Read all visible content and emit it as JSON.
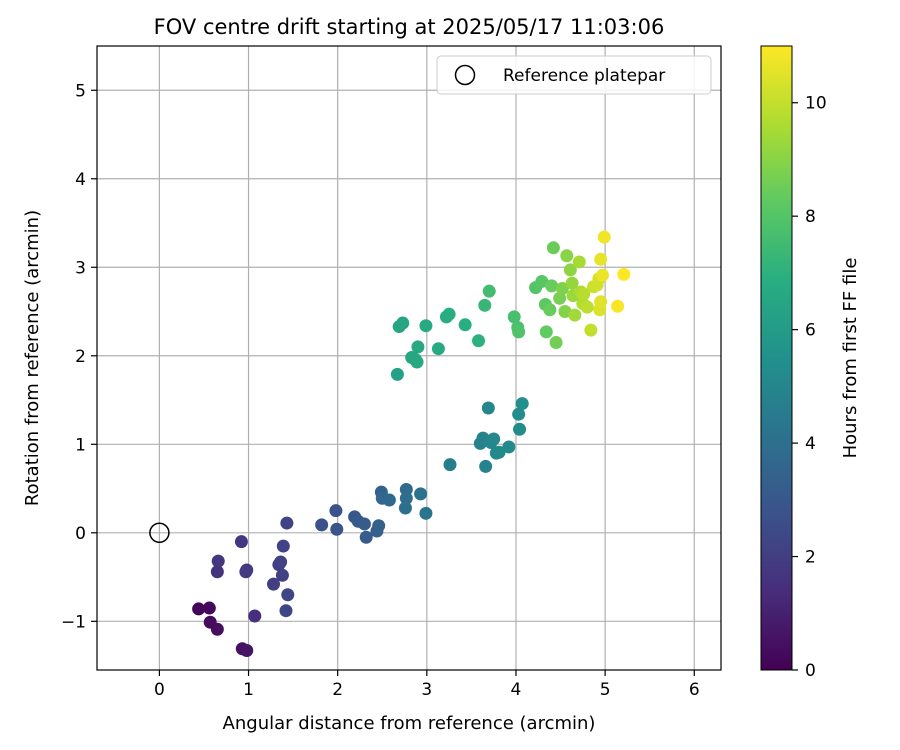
{
  "chart_data": {
    "type": "scatter",
    "title": "FOV centre drift starting at 2025/05/17 11:03:06",
    "xlabel": "Angular distance from reference (arcmin)",
    "ylabel": "Rotation from reference (arcmin)",
    "xlim": [
      -0.7,
      6.3
    ],
    "ylim": [
      -1.55,
      5.5
    ],
    "xticks": [
      0,
      1,
      2,
      3,
      4,
      5,
      6
    ],
    "yticks": [
      -1,
      0,
      1,
      2,
      3,
      4,
      5
    ],
    "xtick_labels": [
      "0",
      "1",
      "2",
      "3",
      "4",
      "5",
      "6"
    ],
    "ytick_labels": [
      "−1",
      "0",
      "1",
      "2",
      "3",
      "4",
      "5"
    ],
    "grid": true,
    "legend": {
      "placement": "top-right",
      "entries": [
        "Reference platepar"
      ]
    },
    "reference_point": {
      "x": 0,
      "y": 0,
      "label": "Reference platepar"
    },
    "colorbar": {
      "label": "Hours from first FF file",
      "range": [
        0,
        11
      ],
      "ticks": [
        0,
        2,
        4,
        6,
        8,
        10
      ],
      "tick_labels": [
        "0",
        "2",
        "4",
        "6",
        "8",
        "10"
      ],
      "colormap": "viridis"
    },
    "points": [
      {
        "x": 0.44,
        "y": -0.86,
        "c": 0.1
      },
      {
        "x": 0.56,
        "y": -0.85,
        "c": 0.2
      },
      {
        "x": 0.57,
        "y": -1.01,
        "c": 0.3
      },
      {
        "x": 0.65,
        "y": -1.09,
        "c": 0.4
      },
      {
        "x": 0.93,
        "y": -1.31,
        "c": 0.5
      },
      {
        "x": 0.98,
        "y": -1.33,
        "c": 0.6
      },
      {
        "x": 1.07,
        "y": -0.94,
        "c": 1.5
      },
      {
        "x": 0.65,
        "y": -0.44,
        "c": 1.6
      },
      {
        "x": 0.66,
        "y": -0.32,
        "c": 1.7
      },
      {
        "x": 0.92,
        "y": -0.1,
        "c": 1.8
      },
      {
        "x": 0.97,
        "y": -0.44,
        "c": 1.9
      },
      {
        "x": 0.98,
        "y": -0.42,
        "c": 1.9
      },
      {
        "x": 1.28,
        "y": -0.58,
        "c": 2.0
      },
      {
        "x": 1.34,
        "y": -0.36,
        "c": 2.0
      },
      {
        "x": 1.36,
        "y": -0.33,
        "c": 2.1
      },
      {
        "x": 1.38,
        "y": -0.48,
        "c": 2.1
      },
      {
        "x": 1.39,
        "y": -0.15,
        "c": 2.2
      },
      {
        "x": 1.43,
        "y": 0.11,
        "c": 2.2
      },
      {
        "x": 1.44,
        "y": -0.7,
        "c": 2.3
      },
      {
        "x": 1.42,
        "y": -0.88,
        "c": 2.3
      },
      {
        "x": 1.82,
        "y": 0.09,
        "c": 2.7
      },
      {
        "x": 1.98,
        "y": 0.25,
        "c": 2.8
      },
      {
        "x": 1.99,
        "y": 0.04,
        "c": 2.9
      },
      {
        "x": 2.19,
        "y": 0.18,
        "c": 3.0
      },
      {
        "x": 2.23,
        "y": 0.13,
        "c": 3.1
      },
      {
        "x": 2.3,
        "y": 0.1,
        "c": 3.2
      },
      {
        "x": 2.32,
        "y": -0.05,
        "c": 3.2
      },
      {
        "x": 2.44,
        "y": 0.02,
        "c": 3.3
      },
      {
        "x": 2.46,
        "y": 0.08,
        "c": 3.4
      },
      {
        "x": 2.49,
        "y": 0.46,
        "c": 3.5
      },
      {
        "x": 2.5,
        "y": 0.39,
        "c": 3.6
      },
      {
        "x": 2.58,
        "y": 0.37,
        "c": 3.7
      },
      {
        "x": 2.77,
        "y": 0.49,
        "c": 3.8
      },
      {
        "x": 2.77,
        "y": 0.39,
        "c": 3.9
      },
      {
        "x": 2.76,
        "y": 0.28,
        "c": 4.0
      },
      {
        "x": 2.93,
        "y": 0.44,
        "c": 4.1
      },
      {
        "x": 2.99,
        "y": 0.22,
        "c": 4.2
      },
      {
        "x": 3.26,
        "y": 0.77,
        "c": 4.6
      },
      {
        "x": 3.6,
        "y": 1.01,
        "c": 4.8
      },
      {
        "x": 3.63,
        "y": 1.07,
        "c": 4.9
      },
      {
        "x": 3.66,
        "y": 0.75,
        "c": 4.9
      },
      {
        "x": 3.69,
        "y": 1.41,
        "c": 5.0
      },
      {
        "x": 3.72,
        "y": 1.02,
        "c": 5.0
      },
      {
        "x": 3.75,
        "y": 1.06,
        "c": 5.1
      },
      {
        "x": 3.78,
        "y": 0.9,
        "c": 5.1
      },
      {
        "x": 3.81,
        "y": 0.91,
        "c": 5.2
      },
      {
        "x": 3.92,
        "y": 0.97,
        "c": 5.2
      },
      {
        "x": 4.03,
        "y": 1.34,
        "c": 5.3
      },
      {
        "x": 4.04,
        "y": 1.17,
        "c": 5.3
      },
      {
        "x": 4.07,
        "y": 1.46,
        "c": 5.4
      },
      {
        "x": 2.67,
        "y": 1.79,
        "c": 6.3
      },
      {
        "x": 2.69,
        "y": 2.33,
        "c": 6.4
      },
      {
        "x": 2.73,
        "y": 2.37,
        "c": 6.4
      },
      {
        "x": 2.83,
        "y": 1.98,
        "c": 6.5
      },
      {
        "x": 2.87,
        "y": 1.96,
        "c": 6.5
      },
      {
        "x": 2.89,
        "y": 1.93,
        "c": 6.6
      },
      {
        "x": 2.9,
        "y": 2.1,
        "c": 6.6
      },
      {
        "x": 2.99,
        "y": 2.34,
        "c": 6.7
      },
      {
        "x": 3.13,
        "y": 2.08,
        "c": 6.7
      },
      {
        "x": 3.22,
        "y": 2.44,
        "c": 6.8
      },
      {
        "x": 3.25,
        "y": 2.47,
        "c": 6.8
      },
      {
        "x": 3.43,
        "y": 2.35,
        "c": 6.9
      },
      {
        "x": 3.58,
        "y": 2.17,
        "c": 7.0
      },
      {
        "x": 3.65,
        "y": 2.57,
        "c": 7.3
      },
      {
        "x": 3.7,
        "y": 2.73,
        "c": 7.6
      },
      {
        "x": 3.98,
        "y": 2.44,
        "c": 7.7
      },
      {
        "x": 4.02,
        "y": 2.32,
        "c": 7.8
      },
      {
        "x": 4.03,
        "y": 2.27,
        "c": 7.9
      },
      {
        "x": 4.22,
        "y": 2.77,
        "c": 8.0
      },
      {
        "x": 4.29,
        "y": 2.84,
        "c": 8.1
      },
      {
        "x": 4.33,
        "y": 2.58,
        "c": 8.2
      },
      {
        "x": 4.34,
        "y": 2.27,
        "c": 8.3
      },
      {
        "x": 4.38,
        "y": 2.52,
        "c": 8.4
      },
      {
        "x": 4.4,
        "y": 2.79,
        "c": 8.4
      },
      {
        "x": 4.42,
        "y": 3.22,
        "c": 8.5
      },
      {
        "x": 4.45,
        "y": 2.15,
        "c": 8.6
      },
      {
        "x": 4.49,
        "y": 2.65,
        "c": 8.7
      },
      {
        "x": 4.52,
        "y": 2.76,
        "c": 8.8
      },
      {
        "x": 4.55,
        "y": 2.5,
        "c": 8.9
      },
      {
        "x": 4.57,
        "y": 3.13,
        "c": 9.0
      },
      {
        "x": 4.61,
        "y": 2.97,
        "c": 9.1
      },
      {
        "x": 4.63,
        "y": 2.82,
        "c": 9.2
      },
      {
        "x": 4.64,
        "y": 2.68,
        "c": 9.3
      },
      {
        "x": 4.66,
        "y": 2.46,
        "c": 9.4
      },
      {
        "x": 4.71,
        "y": 3.06,
        "c": 9.5
      },
      {
        "x": 4.73,
        "y": 2.72,
        "c": 9.6
      },
      {
        "x": 4.75,
        "y": 2.59,
        "c": 9.7
      },
      {
        "x": 4.76,
        "y": 2.7,
        "c": 9.8
      },
      {
        "x": 4.8,
        "y": 2.55,
        "c": 9.9
      },
      {
        "x": 4.84,
        "y": 2.29,
        "c": 10.0
      },
      {
        "x": 4.87,
        "y": 2.78,
        "c": 10.1
      },
      {
        "x": 4.91,
        "y": 2.8,
        "c": 10.2
      },
      {
        "x": 4.93,
        "y": 2.87,
        "c": 10.3
      },
      {
        "x": 4.94,
        "y": 2.52,
        "c": 10.4
      },
      {
        "x": 4.95,
        "y": 2.61,
        "c": 10.5
      },
      {
        "x": 4.95,
        "y": 3.09,
        "c": 10.6
      },
      {
        "x": 4.97,
        "y": 2.91,
        "c": 10.7
      },
      {
        "x": 4.99,
        "y": 3.34,
        "c": 10.8
      },
      {
        "x": 5.14,
        "y": 2.56,
        "c": 10.9
      },
      {
        "x": 5.21,
        "y": 2.92,
        "c": 11.0
      }
    ]
  }
}
